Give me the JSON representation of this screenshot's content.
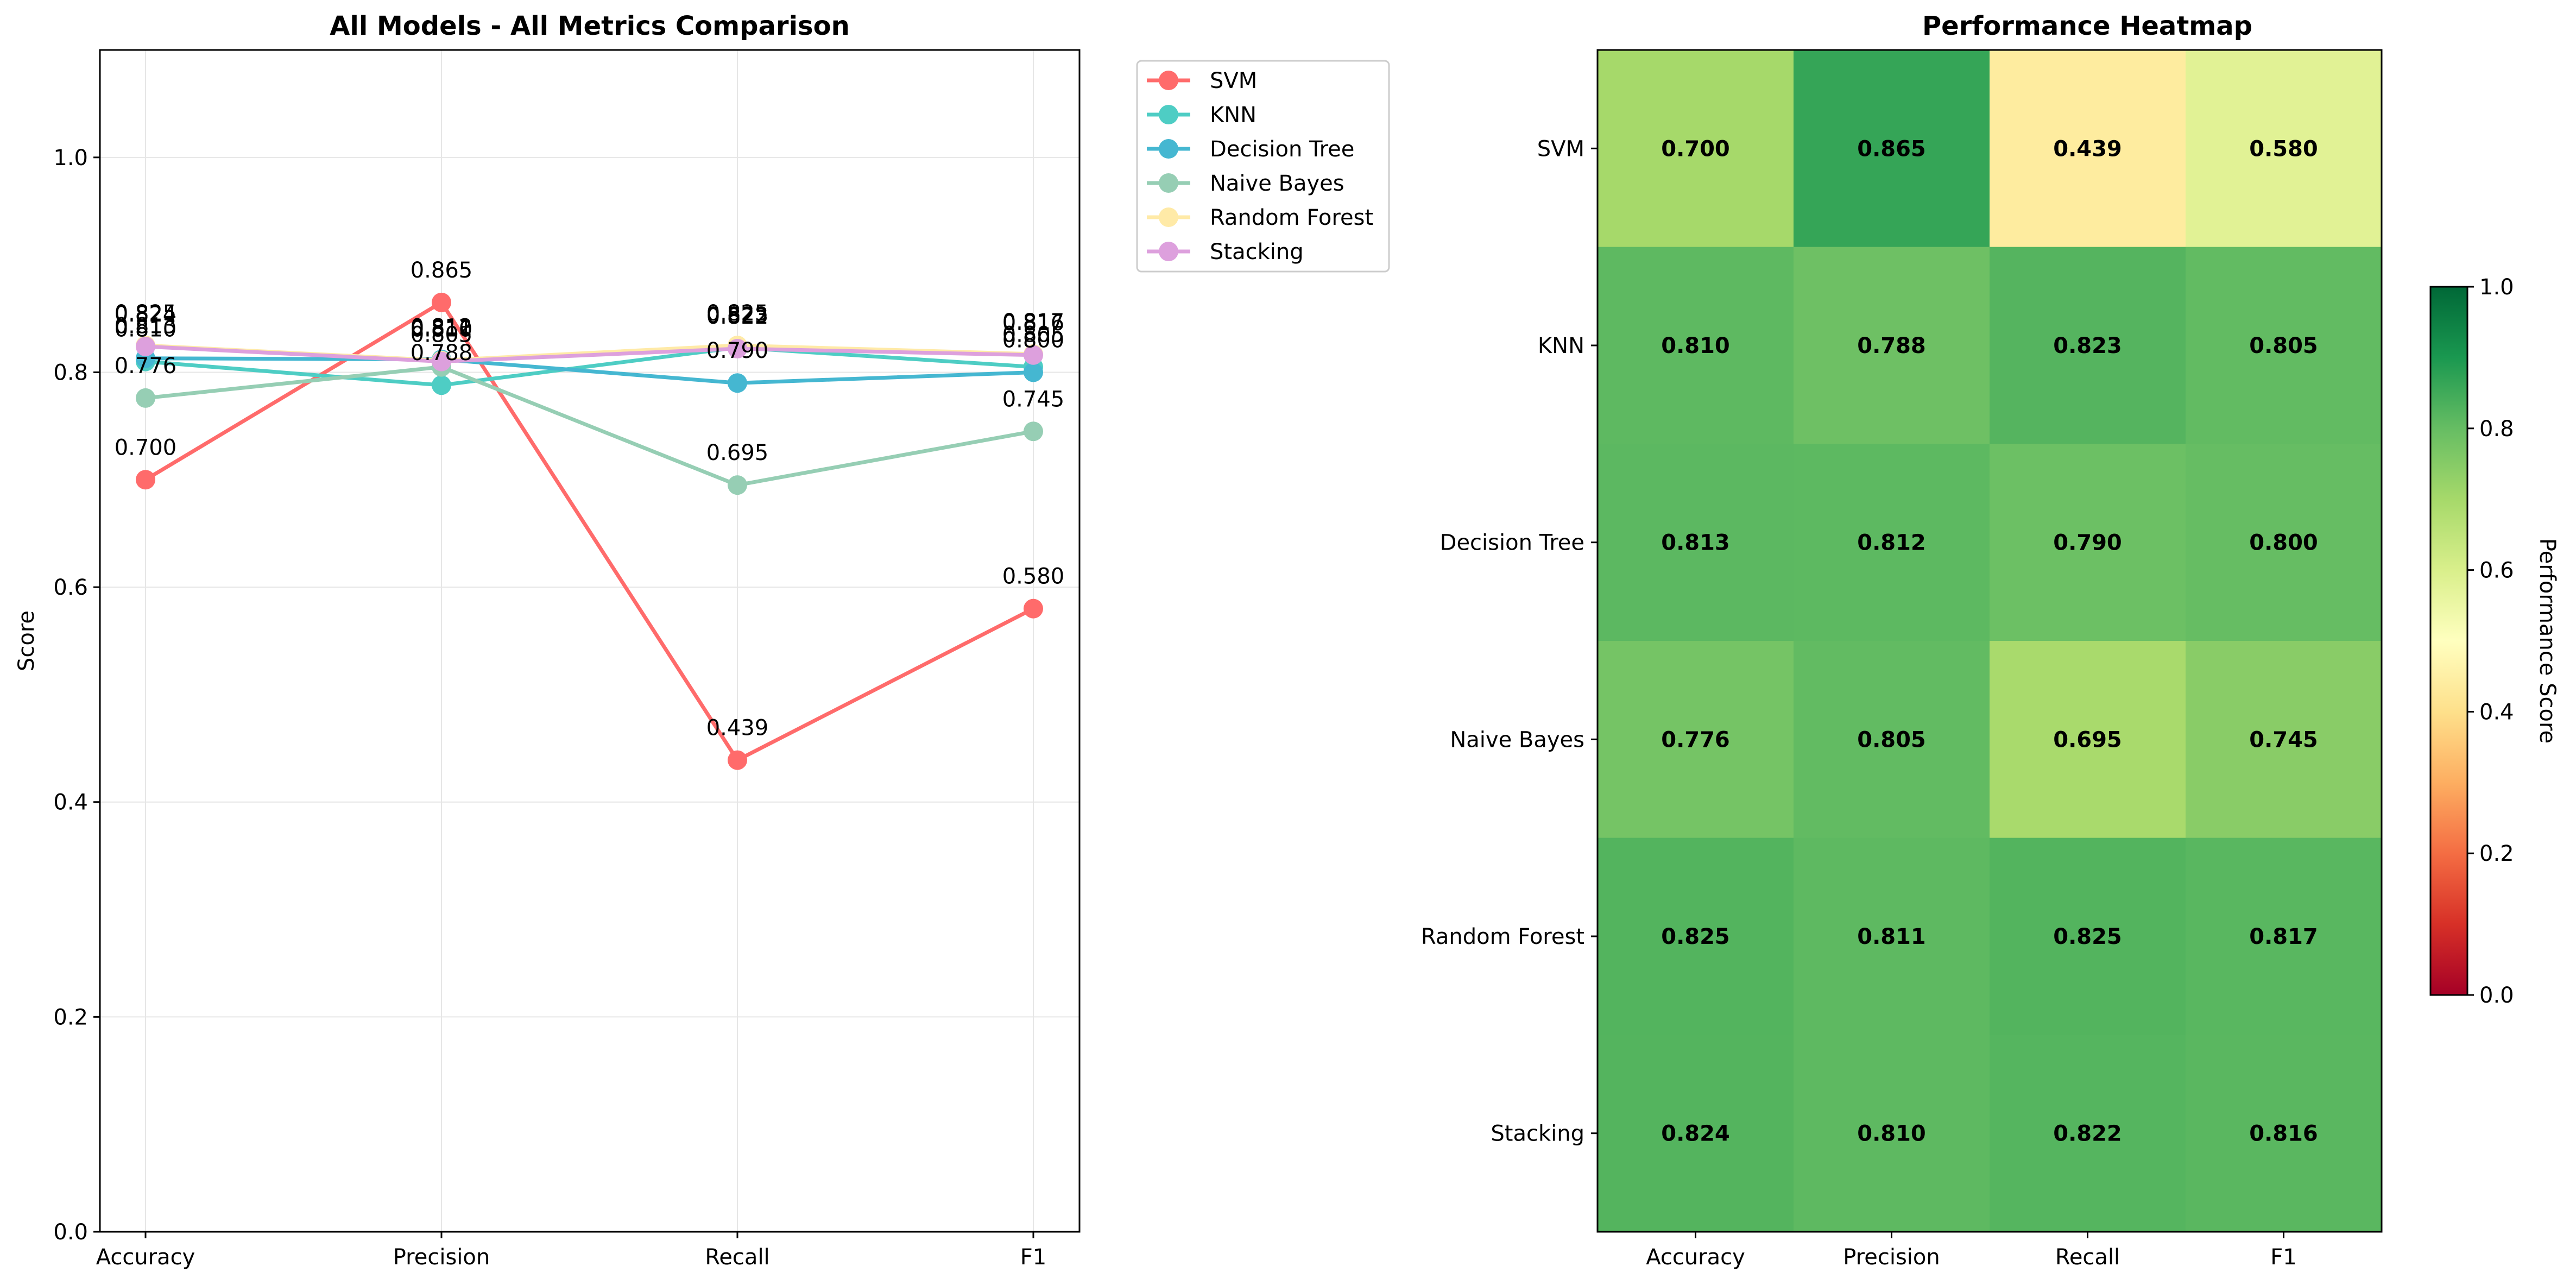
{
  "chart_data": [
    {
      "type": "line",
      "title": "All Models - All Metrics Comparison",
      "xlabel": "",
      "ylabel": "Score",
      "categories": [
        "Accuracy",
        "Precision",
        "Recall",
        "F1"
      ],
      "ylim": [
        0,
        1.1
      ],
      "yticks": [
        0.0,
        0.2,
        0.4,
        0.6,
        0.8,
        1.0
      ],
      "ytick_labels": [
        "0.0",
        "0.2",
        "0.4",
        "0.6",
        "0.8",
        "1.0"
      ],
      "grid": true,
      "legend_position": "outside-top-right",
      "series": [
        {
          "name": "SVM",
          "color": "#ff6b6b",
          "values": [
            0.7,
            0.865,
            0.439,
            0.58
          ]
        },
        {
          "name": "KNN",
          "color": "#4ecdc4",
          "values": [
            0.81,
            0.788,
            0.823,
            0.805
          ]
        },
        {
          "name": "Decision Tree",
          "color": "#45b7d1",
          "values": [
            0.813,
            0.812,
            0.79,
            0.8
          ]
        },
        {
          "name": "Naive Bayes",
          "color": "#96ceb4",
          "values": [
            0.776,
            0.805,
            0.695,
            0.745
          ]
        },
        {
          "name": "Random Forest",
          "color": "#ffeaa7",
          "values": [
            0.825,
            0.811,
            0.825,
            0.817
          ]
        },
        {
          "name": "Stacking",
          "color": "#dda0dd",
          "values": [
            0.824,
            0.81,
            0.822,
            0.816
          ]
        }
      ]
    },
    {
      "type": "heatmap",
      "title": "Performance Heatmap",
      "colormap": "RdYlGn",
      "rows": [
        "SVM",
        "KNN",
        "Decision Tree",
        "Naive Bayes",
        "Random Forest",
        "Stacking"
      ],
      "columns": [
        "Accuracy",
        "Precision",
        "Recall",
        "F1"
      ],
      "values": [
        [
          0.7,
          0.865,
          0.439,
          0.58
        ],
        [
          0.81,
          0.788,
          0.823,
          0.805
        ],
        [
          0.813,
          0.812,
          0.79,
          0.8
        ],
        [
          0.776,
          0.805,
          0.695,
          0.745
        ],
        [
          0.825,
          0.811,
          0.825,
          0.817
        ],
        [
          0.824,
          0.81,
          0.822,
          0.816
        ]
      ],
      "vmin": 0,
      "vmax": 1,
      "colorbar_label": "Performance Score",
      "colorbar_ticks": [
        0.0,
        0.2,
        0.4,
        0.6,
        0.8,
        1.0
      ],
      "colorbar_tick_labels": [
        "0.0",
        "0.2",
        "0.4",
        "0.6",
        "0.8",
        "1.0"
      ]
    }
  ]
}
